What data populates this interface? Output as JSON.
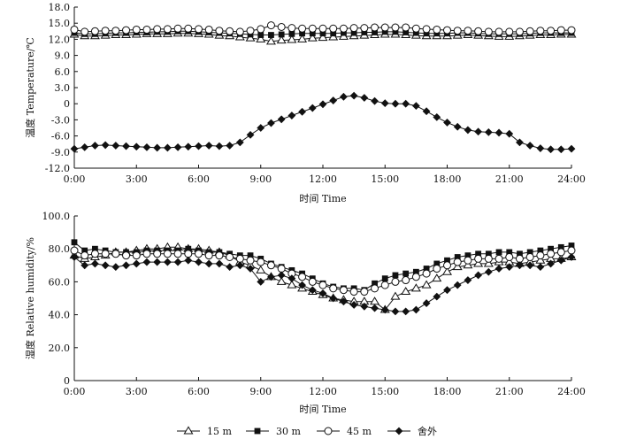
{
  "chart_data": [
    {
      "type": "line",
      "title": "",
      "xlabel": "时间 Time",
      "ylabel": "温度 Temperature/℃",
      "xlim": [
        0,
        24
      ],
      "ylim": [
        -12,
        18
      ],
      "x_ticks": [
        0,
        3,
        6,
        9,
        12,
        15,
        18,
        21,
        24
      ],
      "x_tick_labels": [
        "0:00",
        "3:00",
        "6:00",
        "9:00",
        "12:00",
        "15:00",
        "18:00",
        "21:00",
        "24:00"
      ],
      "y_ticks": [
        -12,
        -9,
        -6,
        -3,
        0,
        3,
        6,
        9,
        12,
        15,
        18
      ],
      "y_tick_labels": [
        "-12.0",
        "-9.0",
        "-6.0",
        "-3.0",
        "0",
        "3.0",
        "6.0",
        "9.0",
        "12.0",
        "15.0",
        "18.0"
      ],
      "grid": false,
      "x": [
        0,
        0.5,
        1,
        1.5,
        2,
        2.5,
        3,
        3.5,
        4,
        4.5,
        5,
        5.5,
        6,
        6.5,
        7,
        7.5,
        8,
        8.5,
        9,
        9.5,
        10,
        10.5,
        11,
        11.5,
        12,
        12.5,
        13,
        13.5,
        14,
        14.5,
        15,
        15.5,
        16,
        16.5,
        17,
        17.5,
        18,
        18.5,
        19,
        19.5,
        20,
        20.5,
        21,
        21.5,
        22,
        22.5,
        23,
        23.5,
        24
      ],
      "series": [
        {
          "name": "15 m",
          "marker": "triangle-open",
          "values": [
            12.9,
            12.6,
            12.6,
            12.7,
            12.8,
            12.8,
            12.9,
            13.0,
            13.0,
            13.0,
            13.1,
            13.1,
            13.0,
            12.9,
            12.7,
            12.6,
            12.4,
            12.2,
            12.0,
            11.6,
            11.8,
            11.9,
            12.0,
            12.2,
            12.3,
            12.4,
            12.5,
            12.6,
            12.7,
            12.8,
            12.9,
            12.9,
            12.8,
            12.7,
            12.6,
            12.6,
            12.6,
            12.7,
            12.8,
            12.7,
            12.6,
            12.5,
            12.5,
            12.6,
            12.7,
            12.8,
            12.8,
            12.9,
            12.9
          ]
        },
        {
          "name": "30 m",
          "marker": "square-filled",
          "values": [
            13.2,
            13.0,
            13.0,
            13.1,
            13.2,
            13.2,
            13.3,
            13.3,
            13.4,
            13.4,
            13.5,
            13.5,
            13.4,
            13.3,
            13.2,
            13.1,
            13.0,
            12.9,
            12.8,
            12.8,
            12.9,
            13.0,
            13.1,
            13.1,
            13.1,
            13.1,
            13.2,
            13.2,
            13.3,
            13.3,
            13.4,
            13.4,
            13.3,
            13.2,
            13.1,
            13.1,
            13.1,
            13.2,
            13.2,
            13.1,
            13.0,
            13.0,
            13.0,
            13.0,
            13.1,
            13.2,
            13.2,
            13.2,
            13.2
          ]
        },
        {
          "name": "45 m",
          "marker": "circle-open",
          "values": [
            13.8,
            13.4,
            13.5,
            13.6,
            13.6,
            13.7,
            13.8,
            13.8,
            13.9,
            13.9,
            14.0,
            14.0,
            13.9,
            13.8,
            13.6,
            13.5,
            13.4,
            13.6,
            13.9,
            14.6,
            14.3,
            14.1,
            14.0,
            14.0,
            14.0,
            14.0,
            14.0,
            14.1,
            14.1,
            14.2,
            14.2,
            14.2,
            14.2,
            14.0,
            13.9,
            13.8,
            13.7,
            13.6,
            13.6,
            13.5,
            13.4,
            13.4,
            13.4,
            13.4,
            13.5,
            13.6,
            13.6,
            13.7,
            13.7
          ]
        },
        {
          "name": "舍外",
          "marker": "diamond-filled",
          "values": [
            -8.4,
            -8.1,
            -7.8,
            -7.7,
            -7.8,
            -7.9,
            -8.0,
            -8.1,
            -8.2,
            -8.2,
            -8.1,
            -8.0,
            -7.9,
            -7.8,
            -7.9,
            -7.8,
            -7.2,
            -5.8,
            -4.5,
            -3.6,
            -2.9,
            -2.2,
            -1.5,
            -0.8,
            -0.1,
            0.6,
            1.3,
            1.5,
            1.1,
            0.5,
            0.1,
            0.0,
            0.0,
            -0.4,
            -1.4,
            -2.5,
            -3.5,
            -4.3,
            -4.9,
            -5.2,
            -5.3,
            -5.4,
            -5.6,
            -7.2,
            -7.8,
            -8.3,
            -8.5,
            -8.5,
            -8.4
          ]
        }
      ]
    },
    {
      "type": "line",
      "title": "",
      "xlabel": "时间 Time",
      "ylabel": "湿度 Relative humidity/%",
      "xlim": [
        0,
        24
      ],
      "ylim": [
        0,
        100
      ],
      "x_ticks": [
        0,
        3,
        6,
        9,
        12,
        15,
        18,
        21,
        24
      ],
      "x_tick_labels": [
        "0:00",
        "3:00",
        "6:00",
        "9:00",
        "12:00",
        "15:00",
        "18:00",
        "21:00",
        "24:00"
      ],
      "y_ticks": [
        0,
        20,
        40,
        60,
        80,
        100
      ],
      "y_tick_labels": [
        "0",
        "20.0",
        "40.0",
        "60.0",
        "80.0",
        "100.0"
      ],
      "grid": false,
      "x": [
        0,
        0.5,
        1,
        1.5,
        2,
        2.5,
        3,
        3.5,
        4,
        4.5,
        5,
        5.5,
        6,
        6.5,
        7,
        7.5,
        8,
        8.5,
        9,
        9.5,
        10,
        10.5,
        11,
        11.5,
        12,
        12.5,
        13,
        13.5,
        14,
        14.5,
        15,
        15.5,
        16,
        16.5,
        17,
        17.5,
        18,
        18.5,
        19,
        19.5,
        20,
        20.5,
        21,
        21.5,
        22,
        22.5,
        23,
        23.5,
        24
      ],
      "series": [
        {
          "name": "15 m",
          "marker": "triangle-open",
          "values": [
            76,
            74,
            75,
            76,
            78,
            78,
            79,
            80,
            80,
            81,
            81,
            80,
            80,
            79,
            78,
            76,
            72,
            70,
            67,
            63,
            60,
            58,
            56,
            54,
            52,
            50,
            49,
            48,
            48,
            48,
            43,
            51,
            54,
            56,
            58,
            62,
            66,
            69,
            70,
            71,
            71,
            72,
            72,
            71,
            72,
            73,
            74,
            74,
            75
          ]
        },
        {
          "name": "30 m",
          "marker": "square-filled",
          "values": [
            84,
            79,
            80,
            79,
            78,
            78,
            78,
            79,
            79,
            79,
            79,
            80,
            79,
            78,
            78,
            77,
            76,
            76,
            74,
            71,
            69,
            67,
            65,
            62,
            59,
            57,
            56,
            56,
            55,
            59,
            62,
            64,
            65,
            66,
            68,
            71,
            73,
            75,
            76,
            77,
            77,
            78,
            78,
            77,
            78,
            79,
            80,
            81,
            82
          ]
        },
        {
          "name": "45 m",
          "marker": "circle-open",
          "values": [
            79,
            76,
            77,
            77,
            77,
            76,
            76,
            77,
            77,
            77,
            77,
            77,
            77,
            76,
            76,
            75,
            74,
            73,
            72,
            70,
            68,
            65,
            63,
            60,
            58,
            56,
            55,
            54,
            54,
            56,
            58,
            60,
            61,
            63,
            65,
            68,
            70,
            72,
            73,
            74,
            74,
            74,
            75,
            74,
            75,
            76,
            77,
            78,
            79
          ]
        },
        {
          "name": "舍外",
          "marker": "diamond-filled",
          "values": [
            75,
            70,
            71,
            70,
            69,
            70,
            71,
            72,
            72,
            72,
            72,
            73,
            72,
            71,
            71,
            69,
            70,
            68,
            60,
            63,
            64,
            62,
            58,
            55,
            53,
            50,
            48,
            46,
            45,
            44,
            43,
            42,
            42,
            43,
            47,
            51,
            55,
            58,
            61,
            64,
            66,
            68,
            69,
            70,
            70,
            69,
            71,
            73,
            75
          ]
        }
      ]
    }
  ],
  "legend": {
    "placement": "bottom-center",
    "items": [
      {
        "label": "15 m",
        "marker": "triangle-open"
      },
      {
        "label": "30 m",
        "marker": "square-filled"
      },
      {
        "label": "45 m",
        "marker": "circle-open"
      },
      {
        "label": "舍外",
        "marker": "diamond-filled"
      }
    ]
  }
}
